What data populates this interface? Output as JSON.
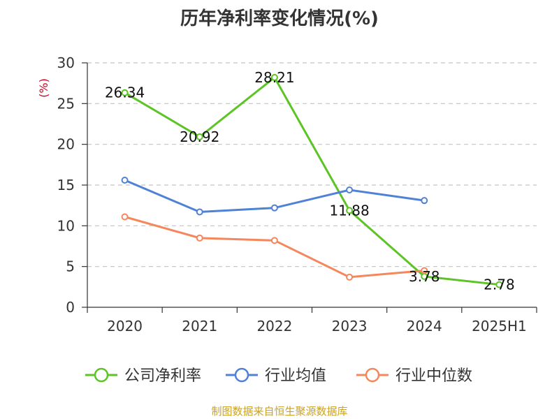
{
  "chart_data": {
    "type": "line",
    "title": "历年净利率变化情况(%)",
    "ylabel": "(%)",
    "xlabel": "",
    "categories": [
      "2020",
      "2021",
      "2022",
      "2023",
      "2024",
      "2025H1"
    ],
    "ylim": [
      0,
      30
    ],
    "yticks": [
      0,
      5,
      10,
      15,
      20,
      25,
      30
    ],
    "grid": true,
    "legend_position": "bottom",
    "series": [
      {
        "name": "公司净利率",
        "color": "#5cc424",
        "values": [
          26.34,
          20.92,
          28.21,
          11.88,
          3.78,
          2.78
        ],
        "labels": [
          "26.34",
          "20.92",
          "28.21",
          "11.88",
          "3.78",
          "2.78"
        ]
      },
      {
        "name": "行业均值",
        "color": "#4f82d6",
        "values": [
          15.6,
          11.7,
          12.2,
          14.4,
          13.1,
          null
        ],
        "labels": null
      },
      {
        "name": "行业中位数",
        "color": "#f5875c",
        "values": [
          11.1,
          8.5,
          8.2,
          3.7,
          4.5,
          null
        ],
        "labels": null
      }
    ]
  },
  "footer": {
    "source": "制图数据来自恒生聚源数据库"
  }
}
